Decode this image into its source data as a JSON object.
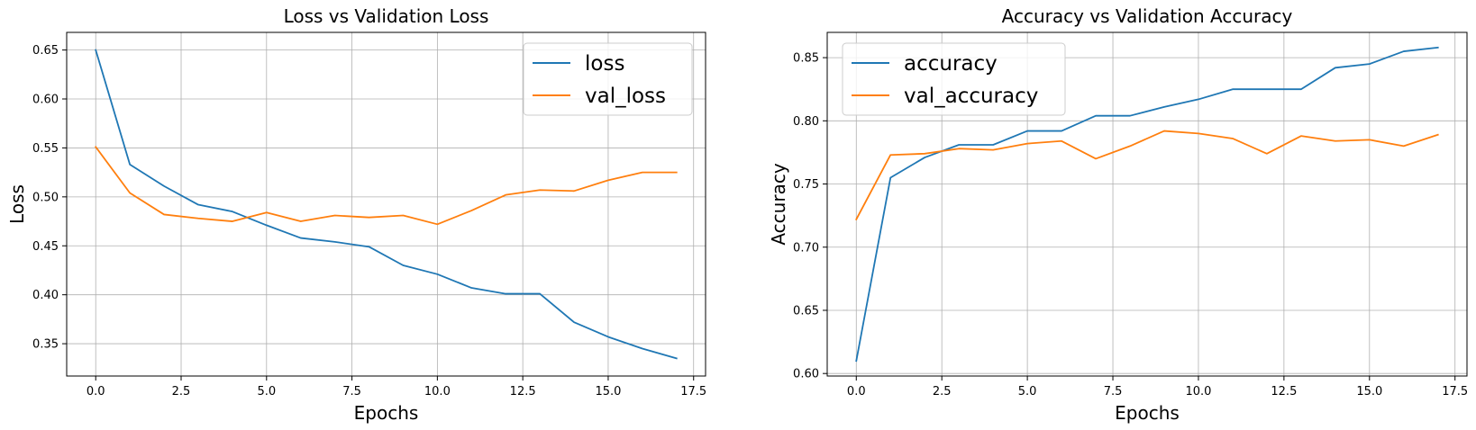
{
  "chart_data": [
    {
      "type": "line",
      "title": "Loss vs Validation Loss",
      "xlabel": "Epochs",
      "ylabel": "Loss",
      "xlim": [
        -0.85,
        17.85
      ],
      "ylim": [
        0.317,
        0.668
      ],
      "xticks": [
        0,
        2.5,
        5,
        7.5,
        10,
        12.5,
        15,
        17.5
      ],
      "xtick_labels": [
        "0.0",
        "2.5",
        "5.0",
        "7.5",
        "10.0",
        "12.5",
        "15.0",
        "17.5"
      ],
      "yticks": [
        0.35,
        0.4,
        0.45,
        0.5,
        0.55,
        0.6,
        0.65
      ],
      "ytick_labels": [
        "0.35",
        "0.40",
        "0.45",
        "0.50",
        "0.55",
        "0.60",
        "0.65"
      ],
      "grid": true,
      "legend_position": "upper-right",
      "x": [
        0,
        1,
        2,
        3,
        4,
        5,
        6,
        7,
        8,
        9,
        10,
        11,
        12,
        13,
        14,
        15,
        16,
        17
      ],
      "series": [
        {
          "name": "loss",
          "color": "#1f77b4",
          "values": [
            0.65,
            0.533,
            0.511,
            0.492,
            0.485,
            0.471,
            0.458,
            0.454,
            0.449,
            0.43,
            0.421,
            0.407,
            0.401,
            0.401,
            0.372,
            0.357,
            0.345,
            0.335
          ]
        },
        {
          "name": "val_loss",
          "color": "#ff7f0e",
          "values": [
            0.551,
            0.504,
            0.482,
            0.478,
            0.475,
            0.484,
            0.475,
            0.481,
            0.479,
            0.481,
            0.472,
            0.486,
            0.502,
            0.507,
            0.506,
            0.517,
            0.525,
            0.525
          ]
        }
      ]
    },
    {
      "type": "line",
      "title": "Accuracy vs Validation Accuracy",
      "xlabel": "Epochs",
      "ylabel": "Accuracy",
      "xlim": [
        -0.85,
        17.85
      ],
      "ylim": [
        0.598,
        0.87
      ],
      "xticks": [
        0,
        2.5,
        5,
        7.5,
        10,
        12.5,
        15,
        17.5
      ],
      "xtick_labels": [
        "0.0",
        "2.5",
        "5.0",
        "7.5",
        "10.0",
        "12.5",
        "15.0",
        "17.5"
      ],
      "yticks": [
        0.6,
        0.65,
        0.7,
        0.75,
        0.8,
        0.85
      ],
      "ytick_labels": [
        "0.60",
        "0.65",
        "0.70",
        "0.75",
        "0.80",
        "0.85"
      ],
      "grid": true,
      "legend_position": "upper-left",
      "x": [
        0,
        1,
        2,
        3,
        4,
        5,
        6,
        7,
        8,
        9,
        10,
        11,
        12,
        13,
        14,
        15,
        16,
        17
      ],
      "series": [
        {
          "name": "accuracy",
          "color": "#1f77b4",
          "values": [
            0.61,
            0.755,
            0.771,
            0.781,
            0.781,
            0.792,
            0.792,
            0.804,
            0.804,
            0.811,
            0.817,
            0.825,
            0.825,
            0.825,
            0.842,
            0.845,
            0.855,
            0.858
          ]
        },
        {
          "name": "val_accuracy",
          "color": "#ff7f0e",
          "values": [
            0.722,
            0.773,
            0.774,
            0.778,
            0.777,
            0.782,
            0.784,
            0.77,
            0.78,
            0.792,
            0.79,
            0.786,
            0.774,
            0.788,
            0.784,
            0.785,
            0.78,
            0.789
          ]
        }
      ]
    }
  ]
}
